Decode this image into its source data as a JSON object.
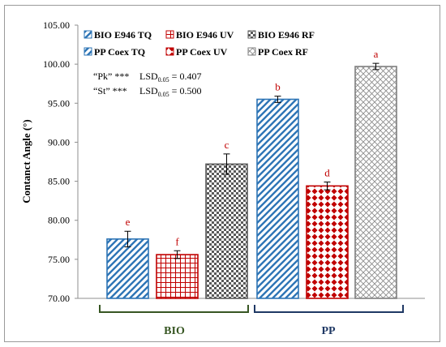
{
  "chart_data": {
    "type": "bar",
    "ylabel": "Contanct Angle (°)",
    "xlabel": "",
    "ylim": [
      70,
      105
    ],
    "yticks": [
      "70.00",
      "75.00",
      "80.00",
      "85.00",
      "90.00",
      "95.00",
      "100.00",
      "105.00"
    ],
    "grid": false,
    "legend_position": "top-left",
    "series": [
      {
        "name": "BIO E946 TQ",
        "group": "BIO",
        "value": 77.6,
        "error": 1.0,
        "letter": "e",
        "color": "#2e75b6",
        "pattern": "diagonal"
      },
      {
        "name": "BIO E946 UV",
        "group": "BIO",
        "value": 75.6,
        "error": 0.5,
        "letter": "f",
        "color": "#c00000",
        "pattern": "grid"
      },
      {
        "name": "BIO E946 RF",
        "group": "BIO",
        "value": 87.2,
        "error": 1.3,
        "letter": "c",
        "color": "#595959",
        "pattern": "checker"
      },
      {
        "name": "PP Coex TQ",
        "group": "PP",
        "value": 95.5,
        "error": 0.4,
        "letter": "b",
        "color": "#2e75b6",
        "pattern": "diagonal"
      },
      {
        "name": "PP Coex UV",
        "group": "PP",
        "value": 84.4,
        "error": 0.5,
        "letter": "d",
        "color": "#c00000",
        "pattern": "diamond"
      },
      {
        "name": "PP Coex RF",
        "group": "PP",
        "value": 99.7,
        "error": 0.4,
        "letter": "a",
        "color": "#7f7f7f",
        "pattern": "lattice"
      }
    ],
    "groups": [
      {
        "label": "BIO",
        "color": "#375623"
      },
      {
        "label": "PP",
        "color": "#1f3864"
      }
    ],
    "annotations": [
      {
        "label": "“Pk” ***",
        "lsd_prefix": "LSD",
        "lsd_sub": "0.05",
        "lsd_value": " = 0.407"
      },
      {
        "label": "“St” ***",
        "lsd_prefix": "LSD",
        "lsd_sub": "0.05",
        "lsd_value": " = 0.500"
      }
    ]
  }
}
